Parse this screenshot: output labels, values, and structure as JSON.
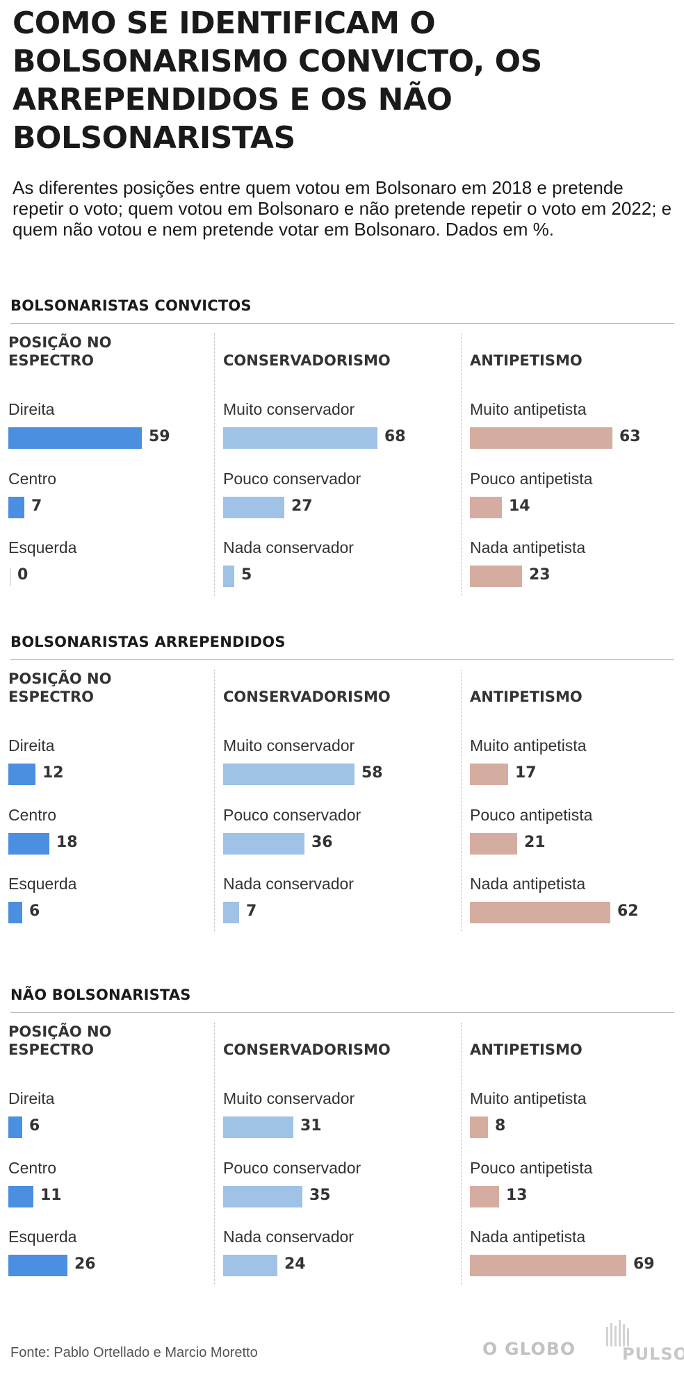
{
  "title": "COMO SE IDENTIFICAM O BOLSONARISMO CONVICTO, OS ARREPENDIDOS E OS NÃO BOLSONARISTAS",
  "subtitle": "As diferentes posições entre quem votou em Bolsonaro em 2018 e pretende repetir o voto; quem votou em Bolsonaro e não pretende repetir o voto em 2022; e quem não votou e nem pretende votar em Bolsonaro. Dados em %.",
  "colors": {
    "espectro": "#4a8fe0",
    "conservadorismo": "#9fc2e6",
    "antipetismo": "#d5ada0",
    "rule": "#b9b9b9",
    "footer_logo": "#c2c2c2"
  },
  "chart_data": [
    {
      "type": "bar",
      "group": "BOLSONARISTAS CONVICTOS",
      "title": "POSIÇÃO NO ESPECTRO",
      "categories": [
        "Direita",
        "Centro",
        "Esquerda"
      ],
      "values": [
        59,
        7,
        0
      ],
      "color": "#4a8fe0",
      "ylim": [
        0,
        69
      ]
    },
    {
      "type": "bar",
      "group": "BOLSONARISTAS CONVICTOS",
      "title": "CONSERVADORISMO",
      "categories": [
        "Muito conservador",
        "Pouco conservador",
        "Nada conservador"
      ],
      "values": [
        68,
        27,
        5
      ],
      "color": "#9fc2e6",
      "ylim": [
        0,
        69
      ]
    },
    {
      "type": "bar",
      "group": "BOLSONARISTAS CONVICTOS",
      "title": "ANTIPETISMO",
      "categories": [
        "Muito antipetista",
        "Pouco antipetista",
        "Nada antipetista"
      ],
      "values": [
        63,
        14,
        23
      ],
      "color": "#d5ada0",
      "ylim": [
        0,
        69
      ]
    },
    {
      "type": "bar",
      "group": "BOLSONARISTAS ARREPENDIDOS",
      "title": "POSIÇÃO NO ESPECTRO",
      "categories": [
        "Direita",
        "Centro",
        "Esquerda"
      ],
      "values": [
        12,
        18,
        6
      ],
      "color": "#4a8fe0",
      "ylim": [
        0,
        69
      ]
    },
    {
      "type": "bar",
      "group": "BOLSONARISTAS ARREPENDIDOS",
      "title": "CONSERVADORISMO",
      "categories": [
        "Muito conservador",
        "Pouco conservador",
        "Nada conservador"
      ],
      "values": [
        58,
        36,
        7
      ],
      "color": "#9fc2e6",
      "ylim": [
        0,
        69
      ]
    },
    {
      "type": "bar",
      "group": "BOLSONARISTAS ARREPENDIDOS",
      "title": "ANTIPETISMO",
      "categories": [
        "Muito antipetista",
        "Pouco antipetista",
        "Nada antipetista"
      ],
      "values": [
        17,
        21,
        62
      ],
      "color": "#d5ada0",
      "ylim": [
        0,
        69
      ]
    },
    {
      "type": "bar",
      "group": "NÃO BOLSONARISTAS",
      "title": "POSIÇÃO NO ESPECTRO",
      "categories": [
        "Direita",
        "Centro",
        "Esquerda"
      ],
      "values": [
        6,
        11,
        26
      ],
      "color": "#4a8fe0",
      "ylim": [
        0,
        69
      ]
    },
    {
      "type": "bar",
      "group": "NÃO BOLSONARISTAS",
      "title": "CONSERVADORISMO",
      "categories": [
        "Muito conservador",
        "Pouco conservador",
        "Nada conservador"
      ],
      "values": [
        31,
        35,
        24
      ],
      "color": "#9fc2e6",
      "ylim": [
        0,
        69
      ]
    },
    {
      "type": "bar",
      "group": "NÃO BOLSONARISTAS",
      "title": "ANTIPETISMO",
      "categories": [
        "Muito antipetista",
        "Pouco antipetista",
        "Nada antipetista"
      ],
      "values": [
        8,
        13,
        69
      ],
      "color": "#d5ada0",
      "ylim": [
        0,
        69
      ]
    }
  ],
  "footer": {
    "source": "Fonte: Pablo Ortellado e Marcio Moretto",
    "logo_globo": "O GLOBO",
    "logo_pulso": "PULSO"
  }
}
